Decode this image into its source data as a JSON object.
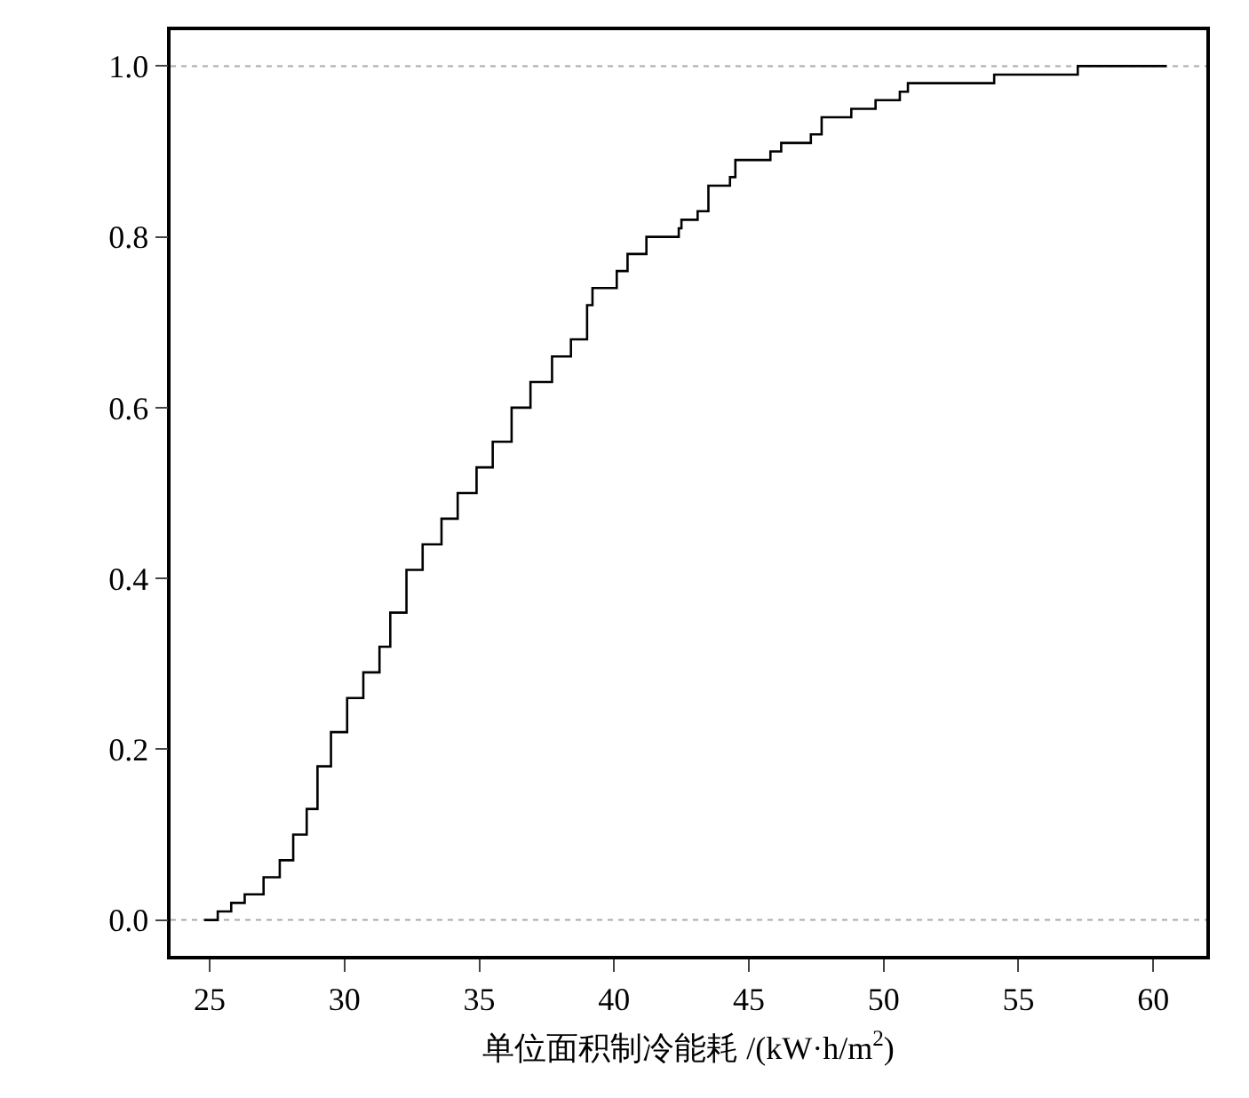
{
  "chart_data": {
    "type": "step",
    "xlabel": "单位面积制冷能耗 /(kW·h/m$^{2}$)",
    "x": [
      24.8,
      25.3,
      25.8,
      26.3,
      27.0,
      27.6,
      28.1,
      28.6,
      29.0,
      29.5,
      30.1,
      30.7,
      31.3,
      31.7,
      32.3,
      32.9,
      33.6,
      34.2,
      34.9,
      35.5,
      36.2,
      36.9,
      37.7,
      38.4,
      39.0,
      39.2,
      40.1,
      40.5,
      41.2,
      42.4,
      42.5,
      43.1,
      43.5,
      44.3,
      44.5,
      45.8,
      46.2,
      47.3,
      47.7,
      48.8,
      49.7,
      50.6,
      50.9,
      52.6,
      54.1,
      56.6,
      57.2,
      60.5
    ],
    "series": [
      {
        "color": "#000000",
        "values": [
          0,
          0.01,
          0.02,
          0.03,
          0.05,
          0.07,
          0.1,
          0.13,
          0.18,
          0.22,
          0.26,
          0.29,
          0.32,
          0.36,
          0.41,
          0.44,
          0.47,
          0.5,
          0.53,
          0.56,
          0.6,
          0.63,
          0.66,
          0.68,
          0.72,
          0.74,
          0.76,
          0.78,
          0.8,
          0.81,
          0.82,
          0.83,
          0.86,
          0.87,
          0.89,
          0.9,
          0.91,
          0.92,
          0.94,
          0.95,
          0.96,
          0.97,
          0.98,
          0.98,
          0.99,
          0.99,
          1.0,
          1.0
        ]
      }
    ],
    "xlim": [
      23.55,
      61.97
    ],
    "ylim": [
      -0.042,
      1.042
    ],
    "xticks": [
      25,
      30,
      35,
      40,
      45,
      50,
      55,
      60
    ],
    "yticks": [
      {
        "value": 0,
        "label": "0.0"
      },
      {
        "value": 0.2,
        "label": "0.2"
      },
      {
        "value": 0.4,
        "label": "0.4"
      },
      {
        "value": 0.6,
        "label": "0.6"
      },
      {
        "value": 0.8,
        "label": "0.8"
      },
      {
        "value": 1,
        "label": "1.0"
      }
    ],
    "ref_lines": [
      {
        "axis": "y",
        "value": 0,
        "color": "#aaaaaa",
        "line_style": "dotted"
      },
      {
        "axis": "y",
        "value": 1,
        "color": "#aaaaaa",
        "line_style": "dotted"
      }
    ],
    "grid": false,
    "marker": "none",
    "line_style": "solid"
  }
}
